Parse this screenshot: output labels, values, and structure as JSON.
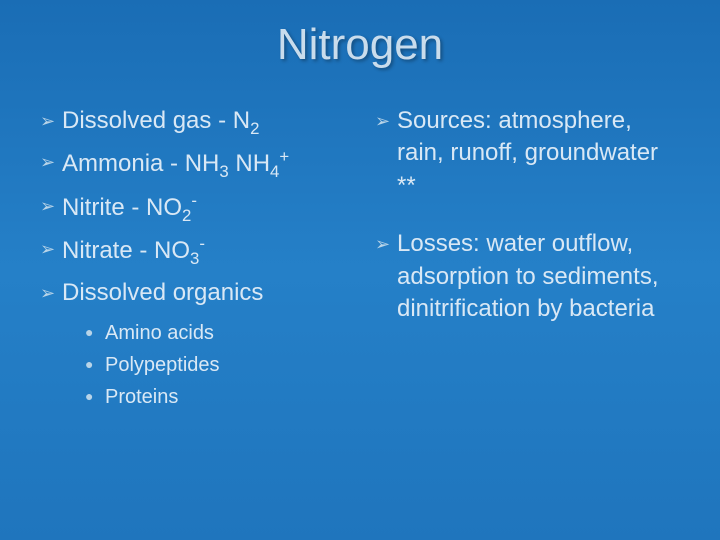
{
  "title": "Nitrogen",
  "colors": {
    "background_top": "#1a6db5",
    "background_mid": "#2580c8",
    "background_bottom": "#1f75bd",
    "text": "#d9e8f5",
    "title_text": "#c9dcec",
    "bullet_marker": "#b8d4e8"
  },
  "typography": {
    "title_fontsize": 44,
    "bullet_fontsize": 24,
    "sub_fontsize": 20,
    "font_family": "Arial"
  },
  "bullet_glyph": "➢",
  "sub_glyph": "●",
  "left_column": {
    "items": [
      {
        "prefix": "Dissolved gas - N",
        "sub": "2",
        "sup": ""
      },
      {
        "prefix": "Ammonia - NH",
        "sub": "3",
        "mid": " NH",
        "sub2": "4",
        "sup2": "+"
      },
      {
        "prefix": "Nitrite - NO",
        "sub": "2",
        "sup": "-"
      },
      {
        "prefix": "Nitrate - NO",
        "sub": "3",
        "sup": "-"
      },
      {
        "prefix": "Dissolved organics",
        "sub": "",
        "sup": ""
      }
    ],
    "sub_items": [
      "Amino acids",
      "Polypeptides",
      "Proteins"
    ]
  },
  "right_column": {
    "items": [
      "Sources: atmosphere, rain, runoff, groundwater **",
      "Losses: water outflow, adsorption to sediments, dinitrification by bacteria"
    ]
  }
}
